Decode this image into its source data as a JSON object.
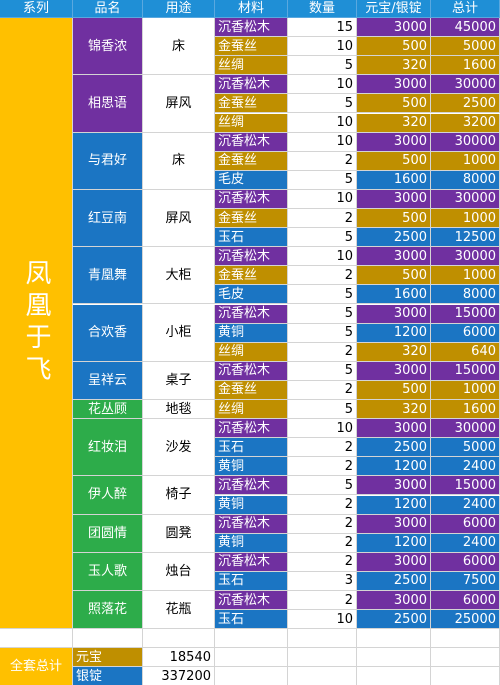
{
  "headers": [
    "系列",
    "品名",
    "用途",
    "材料",
    "数量",
    "元宝/银锭",
    "总计"
  ],
  "series": "凤凰于飞",
  "colors": {
    "header_blue": "#1f8fd6",
    "series_yellow": "#ffc000",
    "purple": "#7030a0",
    "blue": "#1b75c3",
    "green": "#2dac4a",
    "gold": "#bf8f00"
  },
  "materials_colors": {
    "沉香松木": "#7030a0",
    "金蚕丝": "#bf8f00",
    "丝绸": "#bf8f00",
    "毛皮": "#1b75c3",
    "玉石": "#1b75c3",
    "黄铜": "#1b75c3"
  },
  "items": [
    {
      "name": "锦香浓",
      "use": "床",
      "color": "#7030a0",
      "rows": [
        [
          "沉香松木",
          "15",
          "3000",
          "45000"
        ],
        [
          "金蚕丝",
          "10",
          "500",
          "5000"
        ],
        [
          "丝绸",
          "5",
          "320",
          "1600"
        ]
      ]
    },
    {
      "name": "相思语",
      "use": "屏风",
      "color": "#7030a0",
      "rows": [
        [
          "沉香松木",
          "10",
          "3000",
          "30000"
        ],
        [
          "金蚕丝",
          "5",
          "500",
          "2500"
        ],
        [
          "丝绸",
          "10",
          "320",
          "3200"
        ]
      ]
    },
    {
      "name": "与君好",
      "use": "床",
      "color": "#1b75c3",
      "rows": [
        [
          "沉香松木",
          "10",
          "3000",
          "30000"
        ],
        [
          "金蚕丝",
          "2",
          "500",
          "1000"
        ],
        [
          "毛皮",
          "5",
          "1600",
          "8000"
        ]
      ]
    },
    {
      "name": "红豆南",
      "use": "屏风",
      "color": "#1b75c3",
      "rows": [
        [
          "沉香松木",
          "10",
          "3000",
          "30000"
        ],
        [
          "金蚕丝",
          "2",
          "500",
          "1000"
        ],
        [
          "玉石",
          "5",
          "2500",
          "12500"
        ]
      ]
    },
    {
      "name": "青凰舞",
      "use": "大柜",
      "color": "#1b75c3",
      "rows": [
        [
          "沉香松木",
          "10",
          "3000",
          "30000"
        ],
        [
          "金蚕丝",
          "2",
          "500",
          "1000"
        ],
        [
          "毛皮",
          "5",
          "1600",
          "8000"
        ]
      ]
    },
    {
      "name": "合欢香",
      "use": "小柜",
      "color": "#1b75c3",
      "rows": [
        [
          "沉香松木",
          "5",
          "3000",
          "15000"
        ],
        [
          "黄铜",
          "5",
          "1200",
          "6000"
        ],
        [
          "丝绸",
          "2",
          "320",
          "640"
        ]
      ]
    },
    {
      "name": "呈祥云",
      "use": "桌子",
      "color": "#1b75c3",
      "rows": [
        [
          "沉香松木",
          "5",
          "3000",
          "15000"
        ],
        [
          "金蚕丝",
          "2",
          "500",
          "1000"
        ]
      ]
    },
    {
      "name": "花丛顾",
      "use": "地毯",
      "color": "#2dac4a",
      "rows": [
        [
          "丝绸",
          "5",
          "320",
          "1600"
        ]
      ]
    },
    {
      "name": "红妆泪",
      "use": "沙发",
      "color": "#2dac4a",
      "rows": [
        [
          "沉香松木",
          "10",
          "3000",
          "30000"
        ],
        [
          "玉石",
          "2",
          "2500",
          "5000"
        ],
        [
          "黄铜",
          "2",
          "1200",
          "2400"
        ]
      ]
    },
    {
      "name": "伊人醉",
      "use": "椅子",
      "color": "#2dac4a",
      "rows": [
        [
          "沉香松木",
          "5",
          "3000",
          "15000"
        ],
        [
          "黄铜",
          "2",
          "1200",
          "2400"
        ]
      ]
    },
    {
      "name": "团圆情",
      "use": "圆凳",
      "color": "#2dac4a",
      "rows": [
        [
          "沉香松木",
          "2",
          "3000",
          "6000"
        ],
        [
          "黄铜",
          "2",
          "1200",
          "2400"
        ]
      ]
    },
    {
      "name": "玉人歌",
      "use": "烛台",
      "color": "#2dac4a",
      "rows": [
        [
          "沉香松木",
          "2",
          "3000",
          "6000"
        ],
        [
          "玉石",
          "3",
          "2500",
          "7500"
        ]
      ]
    },
    {
      "name": "照落花",
      "use": "花瓶",
      "color": "#2dac4a",
      "rows": [
        [
          "沉香松木",
          "2",
          "3000",
          "6000"
        ],
        [
          "玉石",
          "10",
          "2500",
          "25000"
        ]
      ]
    }
  ],
  "summary": {
    "label": "全套总计",
    "rows": [
      [
        "元宝",
        "18540"
      ],
      [
        "银锭",
        "337200"
      ]
    ]
  }
}
